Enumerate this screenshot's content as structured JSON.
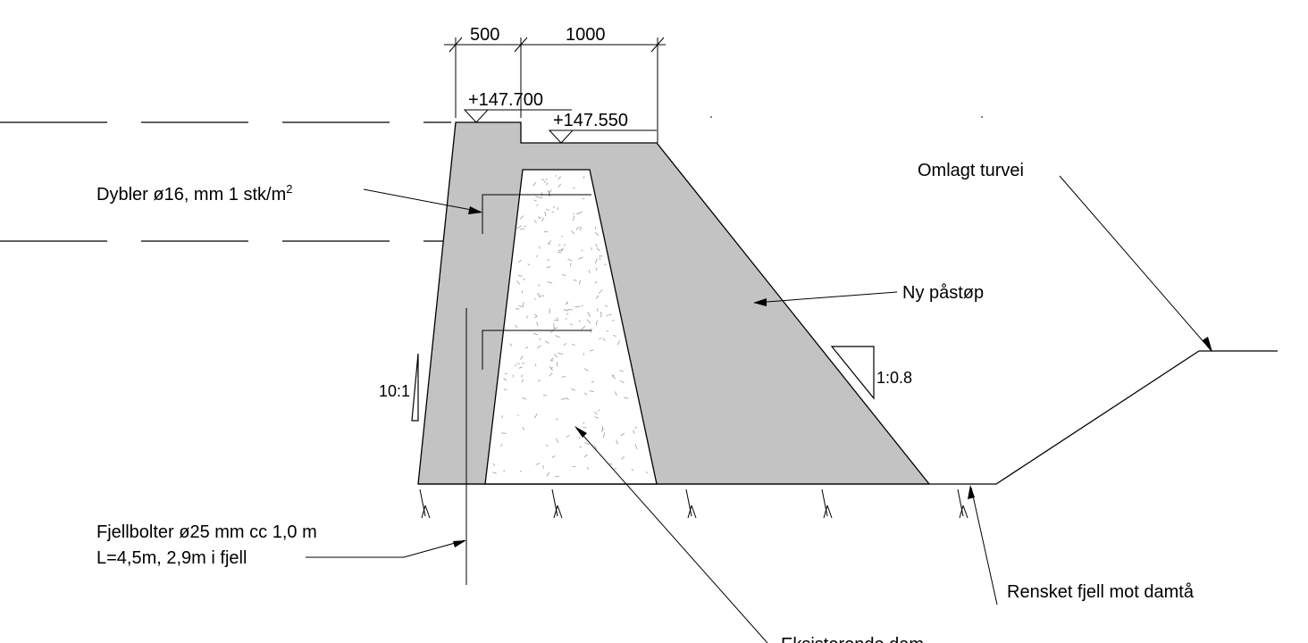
{
  "labels": {
    "dim_left": "500",
    "dim_right": "1000",
    "elev_top": "+147.700",
    "elev_crest": "+147.550",
    "dowels": "Dybler ø16, mm 1 stk/m",
    "dowels_sup": "2",
    "turvei": "Omlagt turvei",
    "new_pour": "Ny påstøp",
    "slope_right": "1:0.8",
    "slope_left": "10:1",
    "bolts_line1": "Fjellbolter ø25 mm cc 1,0 m",
    "bolts_line2": "L=4,5m, 2,9m i fjell",
    "rock": "Rensket fjell mot damtå",
    "existing": "Eksisterende dam"
  },
  "colors": {
    "new_concrete": "#c3c3c3",
    "existing_concrete": "#ffffff",
    "lines": "#000000"
  }
}
